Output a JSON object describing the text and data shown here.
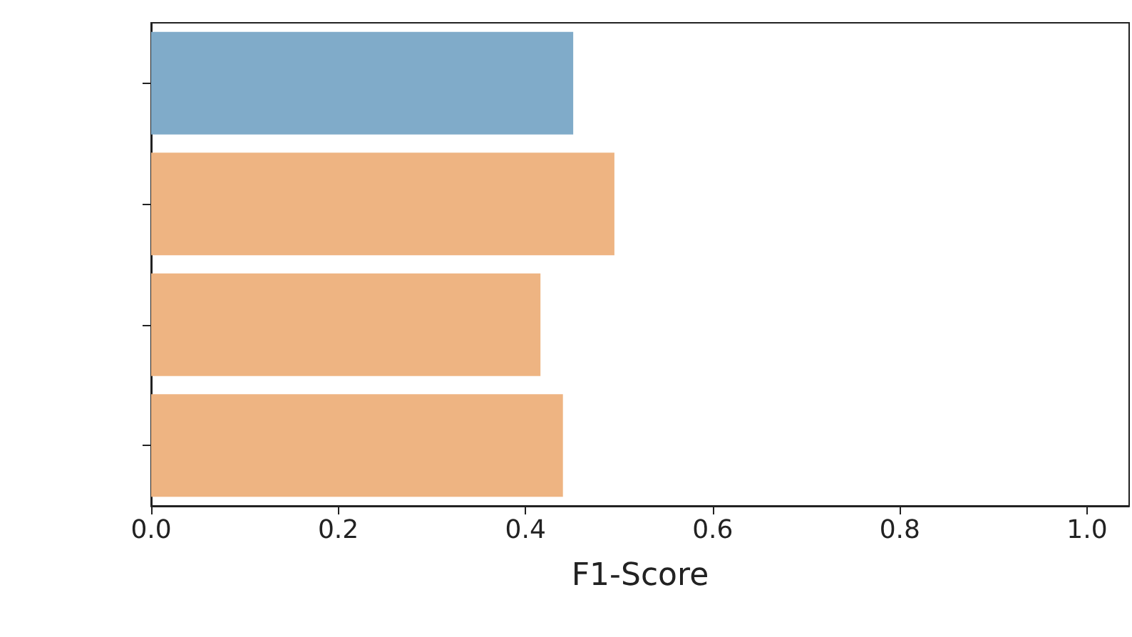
{
  "chart_data": {
    "type": "bar",
    "orientation": "horizontal",
    "xlabel": "F1-Score",
    "categories": [
      null,
      null,
      null,
      null
    ],
    "values": [
      0.451,
      0.495,
      0.416,
      0.44
    ],
    "colors": [
      "#80abc9",
      "#eeb482",
      "#eeb482",
      "#eeb482"
    ],
    "xlim": [
      0,
      1.045
    ],
    "xticks": [
      {
        "value": 0,
        "label": "0.0"
      },
      {
        "value": 0.2,
        "label": "0.2"
      },
      {
        "value": 0.4,
        "label": "0.4"
      },
      {
        "value": 0.6,
        "label": "0.6"
      },
      {
        "value": 0.8,
        "label": "0.8"
      },
      {
        "value": 1,
        "label": "1.0"
      }
    ],
    "data_labels": false
  }
}
